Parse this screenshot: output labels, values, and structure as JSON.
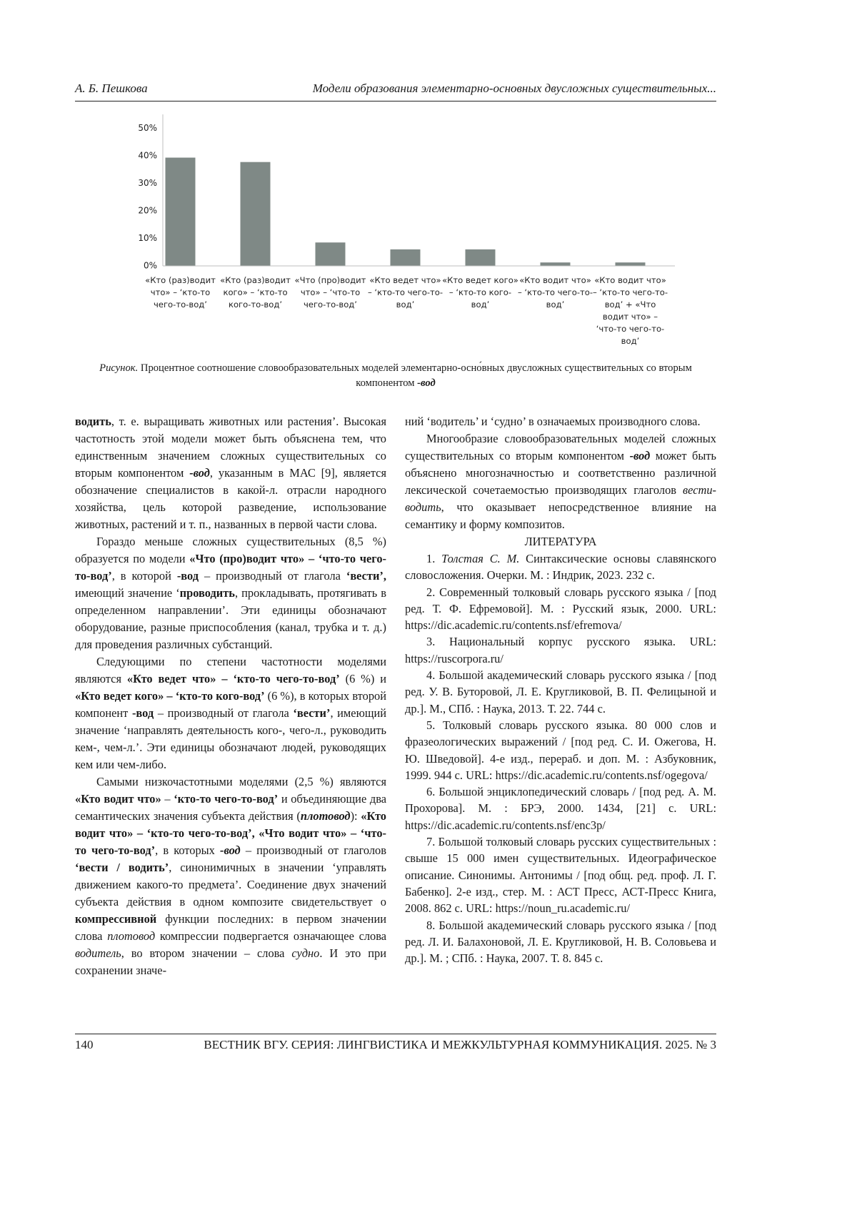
{
  "header": {
    "author": "А. Б. Пешкова",
    "running_title": "Модели образования элементарно-основных двусложных существительных..."
  },
  "chart_data": {
    "type": "bar",
    "categories": [
      "«Кто (раз)водит что» – ‘кто-то чего-то-вод’",
      "«Кто (раз)водит кого» – ‘кто-то кого-то-вод’",
      "«Что (про)водит что» – ‘что-то чего-то-вод’",
      "«Кто ведет что» – ‘кто-то чего-то-вод’",
      "«Кто ведет кого» – ‘кто-то кого-вод’",
      "«Кто водит что» – ‘кто-то чего-то-вод’",
      "«Кто водит что» – ‘кто-то чего-то-вод’ + «Что водит что» – ‘что-то чего-то-вод’"
    ],
    "values": [
      39.3,
      37.7,
      8.5,
      6,
      6,
      1.25,
      1.25
    ],
    "color": "#7f8986",
    "ylim": [
      0,
      55
    ],
    "yticks": [
      {
        "value": 0,
        "label": "0%"
      },
      {
        "value": 10,
        "label": "10%"
      },
      {
        "value": 20,
        "label": "20%"
      },
      {
        "value": 30,
        "label": "30%"
      },
      {
        "value": 40,
        "label": "40%"
      },
      {
        "value": 50,
        "label": "50%"
      }
    ],
    "grid": false
  },
  "caption": [
    {
      "text": "Рисунок.",
      "style": "italic"
    },
    " Процентное соотношение словообразовательных моделей элементарно-осно́вных двусложных существительных со вторым компонентом ",
    {
      "text": "-вод",
      "style": "bold-italic"
    }
  ],
  "left_column": {
    "paragraphs": [
      [
        {
          "text": "водить",
          "style": "bold"
        },
        ", т. е. выращивать животных или растения’. Высокая частотность этой модели может быть объяснена тем, что единственным значением сложных существительных со вторым компонентом ",
        {
          "text": "-вод",
          "style": "bold-italic"
        },
        ", указанным в МАС [9], является обозначение специалистов в какой-л. отрасли народного хозяйства, цель которой разведение, использование животных, растений и т. п., названных в первой части слова."
      ],
      [
        "Гораздо меньше сложных существительных (8,5 %) образуется по модели ",
        {
          "text": "«Что (про)водит что» – ‘что-то чего-то-вод’",
          "style": "bold"
        },
        ", в которой ",
        {
          "text": "-вод",
          "style": "bold"
        },
        " – производный от глагола ",
        {
          "text": "‘вести’,",
          "style": "bold"
        },
        " имеющий значение ‘",
        {
          "text": "проводить",
          "style": "bold"
        },
        ", прокладывать, протягивать в определенном направлении’. Эти единицы обозначают оборудование, разные приспособления (канал, трубка и т. д.) для проведения различных субстанций."
      ],
      [
        "Следующими по степени частотности моделями являются ",
        {
          "text": "«Кто ведет что» – ‘кто-то чего-то-вод’",
          "style": "bold"
        },
        " (6 %) и ",
        {
          "text": "«Кто ведет кого» – ‘кто-то кого-вод’",
          "style": "bold"
        },
        " (6 %), в которых второй компонент ",
        {
          "text": "-вод",
          "style": "bold"
        },
        " – производный от глагола ",
        {
          "text": "‘вести’",
          "style": "bold"
        },
        ", имеющий значение ‘направлять деятельность кого-, чего-л., руководить кем-, чем-л.’. Эти единицы обозначают людей, руководящих кем или чем-либо."
      ],
      [
        "Самыми низкочастотными моделями (2,5 %) являются ",
        {
          "text": "«Кто водит что»",
          "style": "bold"
        },
        " – ",
        {
          "text": "‘кто-то чего-то-вод’",
          "style": "bold"
        },
        " и объединяющие два семантических значения субъекта действия (",
        {
          "text": "плотовод",
          "style": "bold-italic"
        },
        "): ",
        {
          "text": "«Кто водит что» – ‘кто-то чего-то-вод’, «Что водит что» – ‘что-то чего-то-вод’",
          "style": "bold"
        },
        ", в которых ",
        {
          "text": "-вод",
          "style": "bold-italic"
        },
        " – производный от глаголов ",
        {
          "text": "‘вести / водить’",
          "style": "bold"
        },
        ", синонимичных в значении ‘управлять движением какого-то предмета’. Соединение двух значений субъекта действия в одном композите свидетельствует о ",
        {
          "text": "компрессивной",
          "style": "bold"
        },
        " функции последних: в первом значении слова ",
        {
          "text": "плотовод",
          "style": "italic"
        },
        " компрессии подвергается означающее слова ",
        {
          "text": "водитель",
          "style": "italic"
        },
        ", во втором значении – слова ",
        {
          "text": "судно",
          "style": "italic"
        },
        ". И это при сохранении значе-"
      ]
    ]
  },
  "right_column": {
    "paragraphs": [
      [
        "ний ‘водитель’ и ‘судно’ в означаемых производного слова."
      ],
      [
        "Многообразие словообразовательных моделей сложных существительных со вторым компонентом ",
        {
          "text": "-вод",
          "style": "bold-italic"
        },
        " может быть объяснено многозначностью и соответственно различной лексической сочетаемостью производящих глаголов ",
        {
          "text": "вести-водить",
          "style": "italic"
        },
        ", что оказывает непосредственное влияние на семантику и форму композитов."
      ]
    ],
    "references_title": "ЛИТЕРАТУРА",
    "references": [
      [
        "1. ",
        {
          "text": "Толстая С. М.",
          "style": "italic"
        },
        " Синтаксические основы славянского словосложения. Очерки. М. : Индрик, 2023. 232 с."
      ],
      [
        "2. Современный толковый словарь русского языка / [под ред. Т. Ф. Ефремовой]. М. : Русский язык, 2000. URL: https://dic.academic.ru/contents.nsf/efremova/"
      ],
      [
        "3. Национальный корпус русского языка. URL: https://ruscorpora.ru/"
      ],
      [
        "4. Большой академический словарь русского языка / [под ред. У. В. Буторовой, Л. Е. Кругликовой, В. П. Фелицыной и др.]. М., СПб. : Наука, 2013. Т. 22. 744 с."
      ],
      [
        "5. Толковый словарь русского языка. 80 000 слов и фразеологических выражений / [под ред. С. И. Ожегова, Н. Ю. Шведовой]. 4-е изд., перераб. и доп. М. : Азбуковник, 1999. 944 с. URL: https://dic.academic.ru/contents.nsf/ogegova/"
      ],
      [
        "6. Большой энциклопедический словарь / [под ред. А. М. Прохорова]. М. : БРЭ, 2000. 1434, [21] с. URL: https://dic.academic.ru/contents.nsf/enc3p/"
      ],
      [
        "7. Большой толковый словарь русских существительных : свыше 15 000 имен существительных. Идеографическое описание. Синонимы. Антонимы / [под общ. ред. проф. Л. Г. Бабенко]. 2-е изд., стер. М. : АСТ Пресс, АСТ-Пресс Книга, 2008. 862 с. URL: https://noun_ru.academic.ru/"
      ],
      [
        "8. Большой академический словарь русского языка / [под ред. Л. И. Балахоновой, Л. Е. Кругликовой, Н. В. Соловьева и др.]. М. ; СПб. : Наука, 2007. Т. 8. 845 с."
      ]
    ]
  },
  "footer": {
    "page_number": "140",
    "journal": "ВЕСТНИК ВГУ. СЕРИЯ: ЛИНГВИСТИКА И МЕЖКУЛЬТУРНАЯ КОММУНИКАЦИЯ. 2025. № 3"
  }
}
